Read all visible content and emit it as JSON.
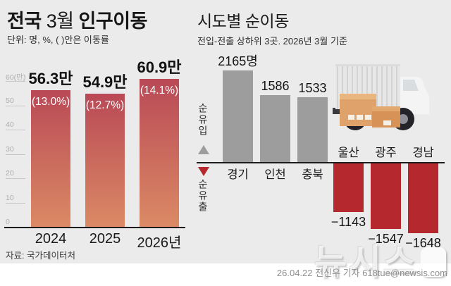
{
  "chart_data": [
    {
      "type": "bar",
      "title": "전국 3월 인구이동",
      "title_parts": {
        "bold1": "전국",
        "regular": " 3월 ",
        "bold2": "인구이동"
      },
      "subtitle": "단위: 명, %, ( )안은 이동률",
      "categories": [
        "2024",
        "2025",
        "2026년"
      ],
      "values": [
        56.3,
        54.9,
        60.9
      ],
      "value_labels": [
        "56.3만",
        "54.9만",
        "60.9만"
      ],
      "pct_labels": [
        "(13.0%)",
        "(12.7%)",
        "(14.1%)"
      ],
      "ylim": [
        0,
        60
      ],
      "ytick_labels": [
        "60(만)",
        "50",
        "40",
        "30",
        "20",
        "10",
        "0"
      ],
      "ytick_values": [
        60,
        50,
        40,
        30,
        20,
        10,
        0
      ],
      "grid": false,
      "legend": "none",
      "bar_color_top": "#b94956",
      "bar_color_bottom": "#db8a65",
      "unit": "만 명"
    },
    {
      "type": "bar",
      "title": "시도별 순이동",
      "subtitle": "전입-전출 상하위 3곳. 2026년 3월 기준",
      "categories": [
        "경기",
        "인천",
        "충북",
        "울산",
        "광주",
        "경남"
      ],
      "values": [
        2165,
        1586,
        1533,
        -1143,
        -1547,
        -1648
      ],
      "value_labels": [
        "2165명",
        "1586",
        "1533",
        "−1143",
        "−1547",
        "−1648"
      ],
      "inflow_label": "순유입",
      "outflow_label": "순유출",
      "positive_color": "#9d9d9d",
      "negative_color": "#b4282e",
      "grid": false,
      "legend": "none",
      "unit": "명"
    }
  ],
  "footer": {
    "source": "자료: 국가데이터처",
    "credit": "26.04.22 전신우 기자 618tue@newsis.com",
    "watermark": "뉴시스"
  },
  "colors": {
    "background": "#ebebeb",
    "axis": "#1c1c1c"
  }
}
